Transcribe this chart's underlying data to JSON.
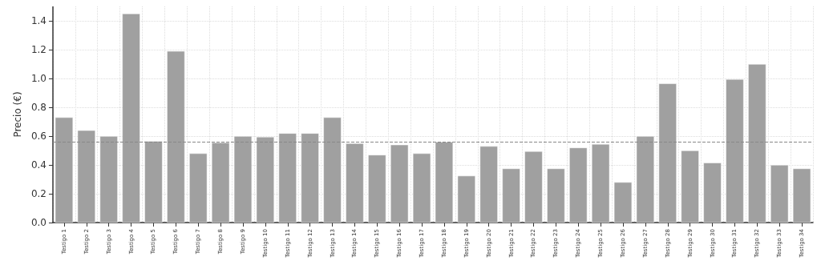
{
  "chart_data": {
    "type": "bar",
    "ylabel": "Precio (€)",
    "categories": [
      "Testigo 1",
      "Testigo 2",
      "Testigo 3",
      "Testigo 4",
      "Testigo 5",
      "Testigo 6",
      "Testigo 7",
      "Testigo 8",
      "Testigo 9",
      "Testigo 10",
      "Testigo 11",
      "Testigo 12",
      "Testigo 13",
      "Testigo 14",
      "Testigo 15",
      "Testigo 16",
      "Testigo 17",
      "Testigo 18",
      "Testigo 19",
      "Testigo 20",
      "Testigo 21",
      "Testigo 22",
      "Testigo 23",
      "Testigo 24",
      "Testigo 25",
      "Testigo 26",
      "Testigo 27",
      "Testigo 28",
      "Testigo 29",
      "Testigo 30",
      "Testigo 31",
      "Testigo 32",
      "Testigo 33",
      "Testigo 34"
    ],
    "values": [
      0.73,
      0.64,
      0.6,
      1.45,
      0.565,
      1.19,
      0.48,
      0.555,
      0.6,
      0.595,
      0.62,
      0.62,
      0.73,
      0.55,
      0.47,
      0.54,
      0.48,
      0.56,
      0.325,
      0.53,
      0.375,
      0.495,
      0.375,
      0.52,
      0.545,
      0.28,
      0.6,
      0.965,
      0.5,
      0.415,
      0.995,
      1.1,
      0.4,
      0.375
    ],
    "color": "#a0a0a0",
    "ylim": [
      0,
      1.5
    ],
    "yticks": [
      {
        "value": 0,
        "label": "0.0"
      },
      0.2,
      0.4,
      0.6,
      0.8,
      {
        "value": 1,
        "label": "1.0"
      },
      1.2,
      1.4
    ],
    "grid": true,
    "ref_lines": [
      {
        "axis": "y",
        "value": 0.565,
        "color": "#888888",
        "line_style": "dashed"
      }
    ]
  }
}
